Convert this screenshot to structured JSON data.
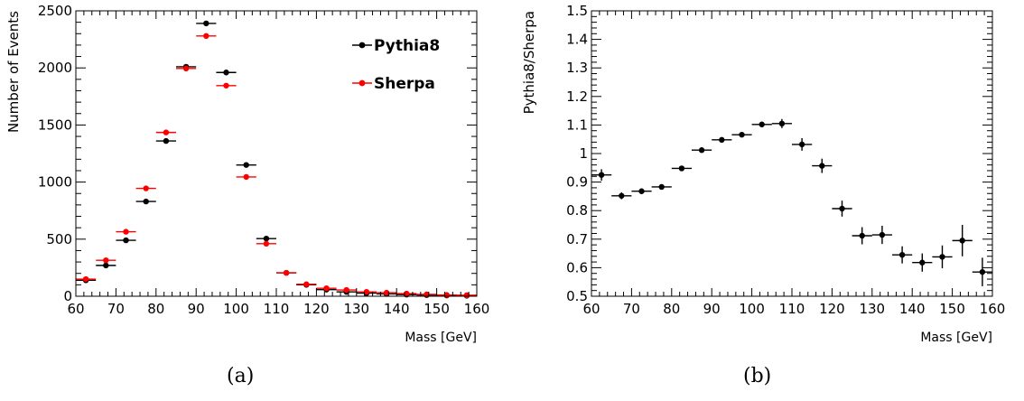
{
  "chart_data": [
    {
      "type": "scatter",
      "panel_label": "(a)",
      "xlabel": "Mass [GeV]",
      "ylabel": "Number of Events",
      "xlim": [
        60,
        160
      ],
      "ylim": [
        0,
        2500
      ],
      "x_ticks": [
        "60",
        "70",
        "80",
        "90",
        "100",
        "110",
        "120",
        "130",
        "140",
        "150",
        "160"
      ],
      "y_ticks": [
        "0",
        "500",
        "1000",
        "1500",
        "2000",
        "2500"
      ],
      "legend_position": "top-right",
      "series": [
        {
          "name": "Pythia8",
          "color": "#000000",
          "x": [
            62.5,
            67.5,
            72.5,
            77.5,
            82.5,
            87.5,
            92.5,
            97.5,
            102.5,
            107.5,
            112.5,
            117.5,
            122.5,
            127.5,
            132.5,
            137.5,
            142.5,
            147.5,
            152.5,
            157.5
          ],
          "values": [
            140,
            270,
            490,
            830,
            1360,
            2010,
            2390,
            1960,
            1150,
            505,
            205,
            100,
            58,
            38,
            27,
            20,
            14,
            10,
            7,
            5
          ]
        },
        {
          "name": "Sherpa",
          "color": "#ff0000",
          "x": [
            62.5,
            67.5,
            72.5,
            77.5,
            82.5,
            87.5,
            92.5,
            97.5,
            102.5,
            107.5,
            112.5,
            117.5,
            122.5,
            127.5,
            132.5,
            137.5,
            142.5,
            147.5,
            152.5,
            157.5
          ],
          "values": [
            150,
            315,
            565,
            945,
            1435,
            1995,
            2280,
            1845,
            1045,
            460,
            205,
            105,
            70,
            55,
            38,
            31,
            23,
            16,
            11,
            9
          ]
        }
      ]
    },
    {
      "type": "scatter",
      "panel_label": "(b)",
      "xlabel": "Mass [GeV]",
      "ylabel": "Pythia8/Sherpa",
      "xlim": [
        60,
        160
      ],
      "ylim": [
        0.5,
        1.5
      ],
      "x_ticks": [
        "60",
        "70",
        "80",
        "90",
        "100",
        "110",
        "120",
        "130",
        "140",
        "150",
        "160"
      ],
      "y_ticks": [
        "0.5",
        "0.6",
        "0.7",
        "0.8",
        "0.9",
        "1",
        "1.1",
        "1.2",
        "1.3",
        "1.4",
        "1.5"
      ],
      "series": [
        {
          "color": "#000000",
          "x": [
            62.5,
            67.5,
            72.5,
            77.5,
            82.5,
            87.5,
            92.5,
            97.5,
            102.5,
            107.5,
            112.5,
            117.5,
            122.5,
            127.5,
            132.5,
            137.5,
            142.5,
            147.5,
            152.5,
            157.5
          ],
          "values": [
            0.925,
            0.852,
            0.868,
            0.883,
            0.948,
            1.012,
            1.048,
            1.066,
            1.102,
            1.105,
            1.032,
            0.957,
            0.807,
            0.712,
            0.715,
            0.645,
            0.618,
            0.638,
            0.695,
            0.585
          ],
          "errors": [
            0.02,
            0.012,
            0.01,
            0.008,
            0.008,
            0.007,
            0.007,
            0.008,
            0.01,
            0.016,
            0.022,
            0.025,
            0.028,
            0.03,
            0.032,
            0.03,
            0.032,
            0.04,
            0.055,
            0.05
          ]
        }
      ]
    }
  ]
}
